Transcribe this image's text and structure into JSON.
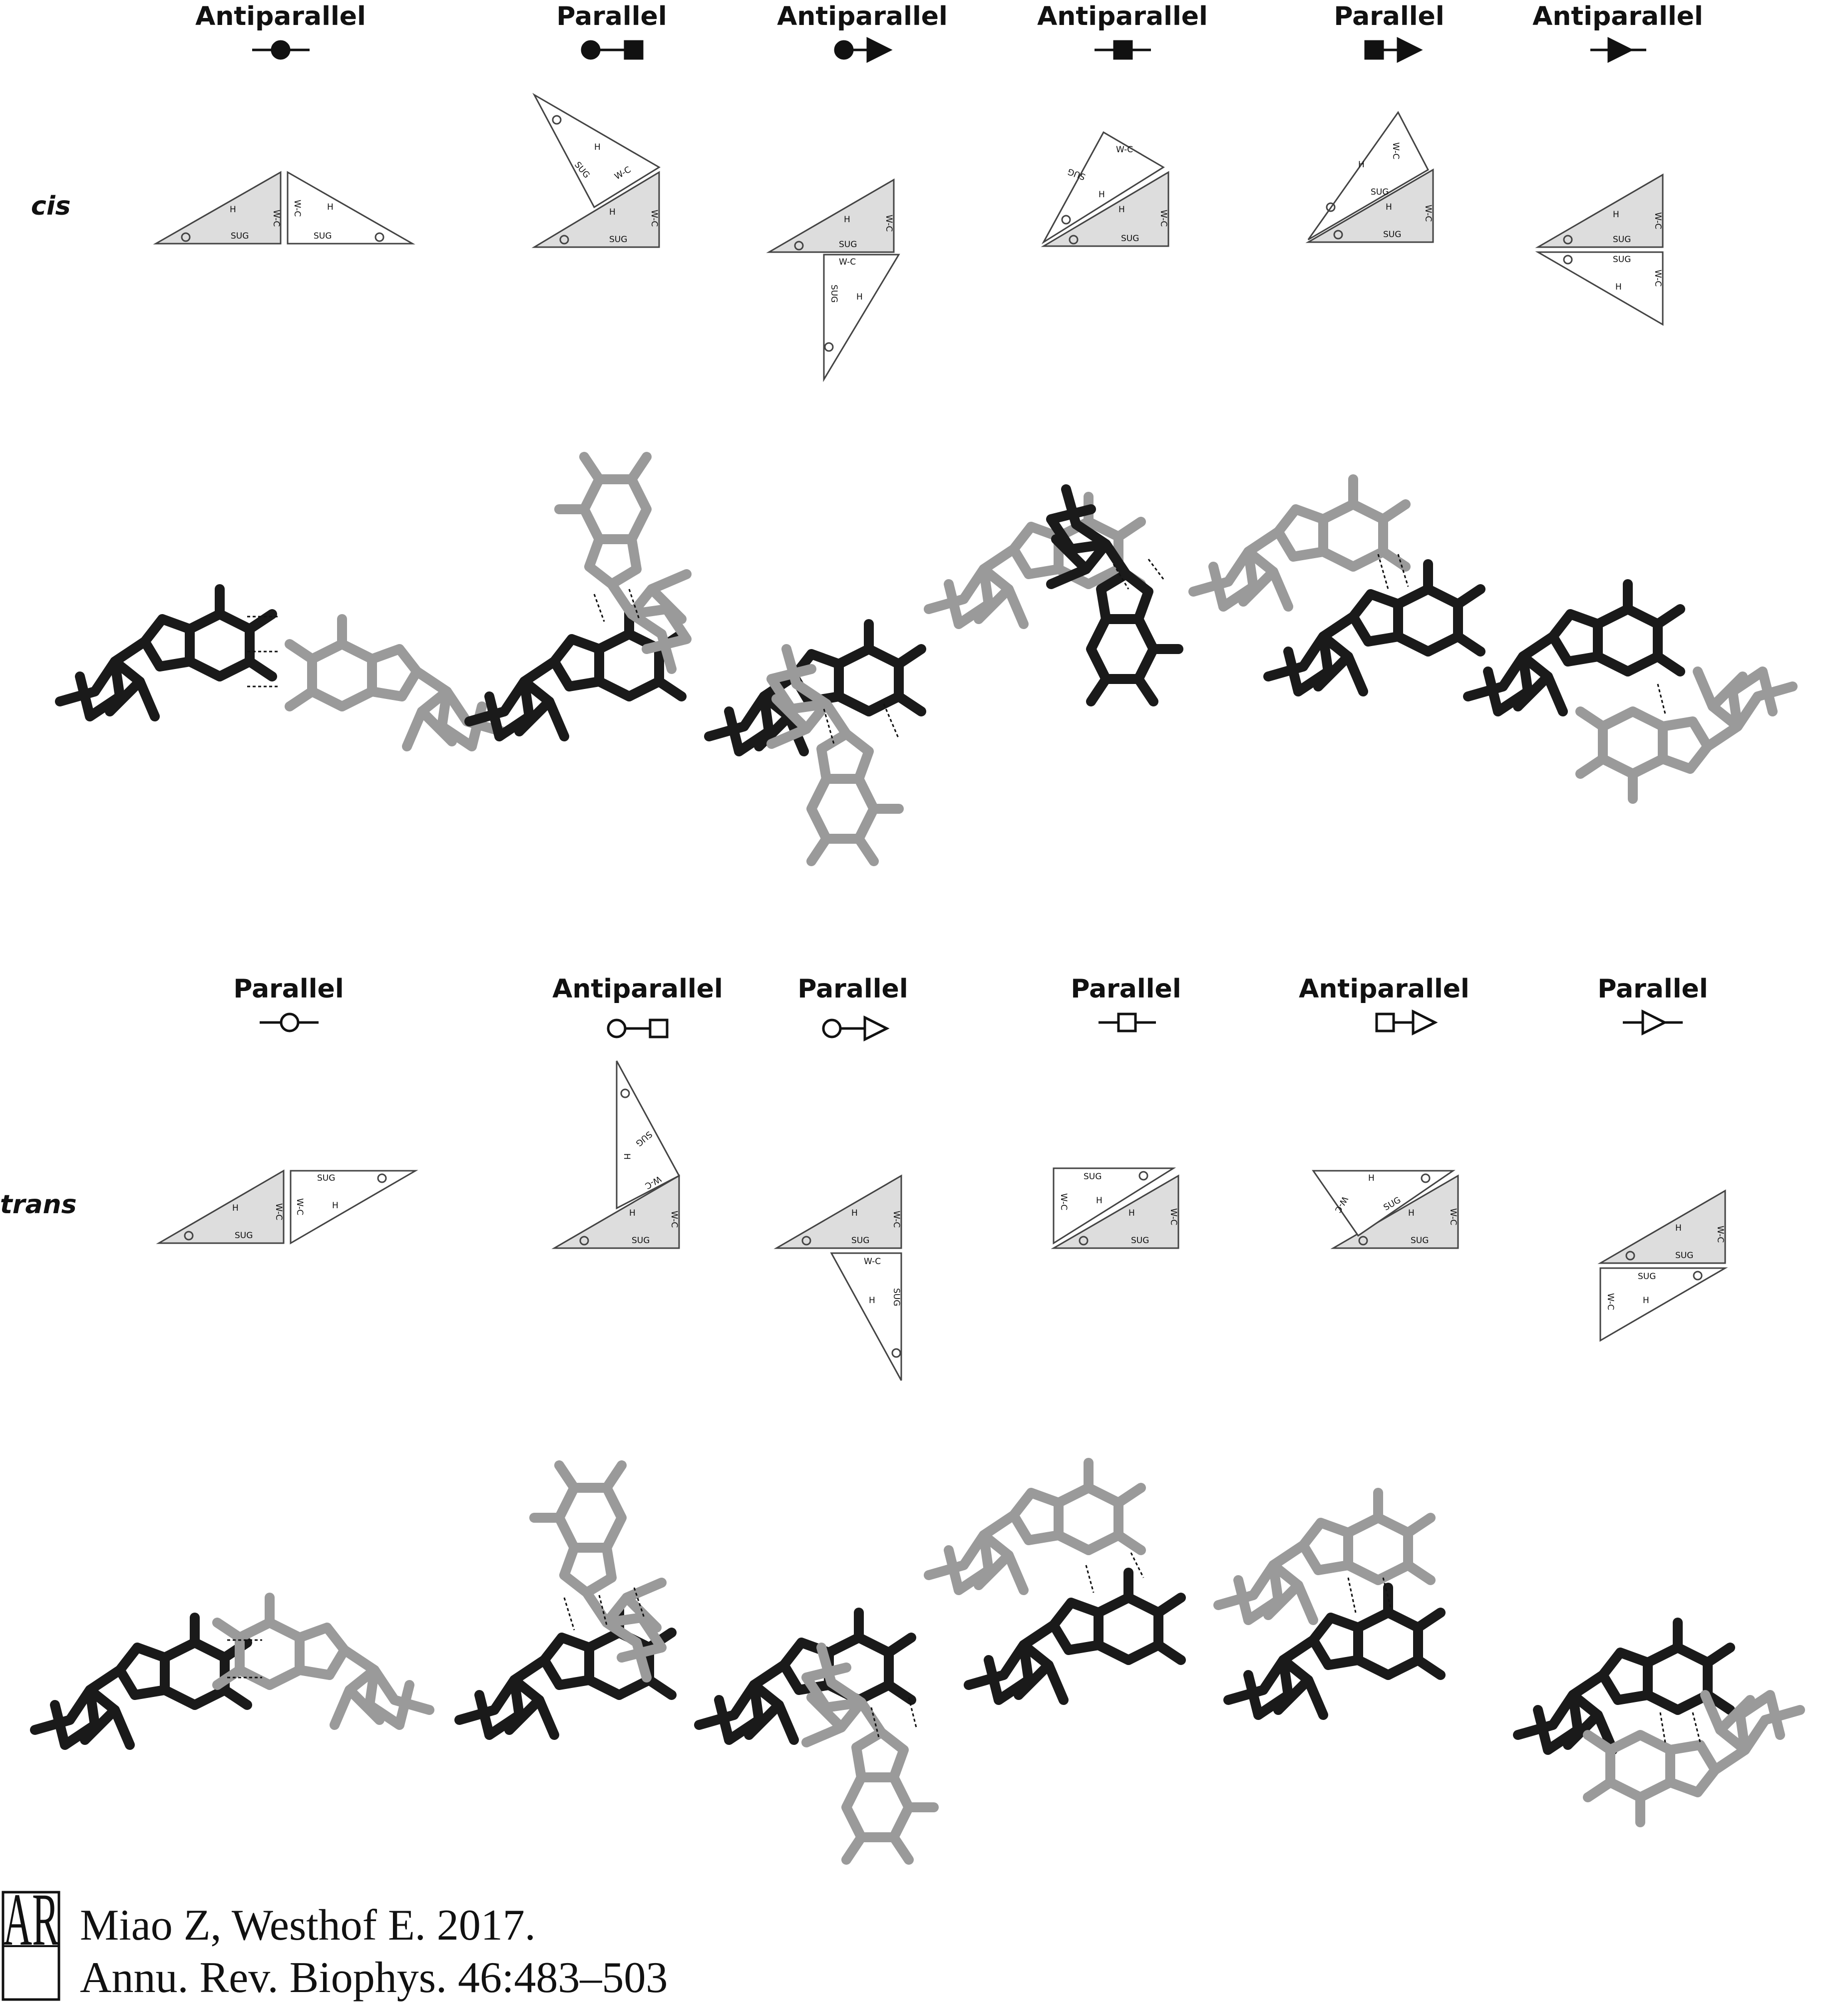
{
  "figure": {
    "rows": [
      {
        "label": "cis",
        "panels": [
          {
            "orientation": "Antiparallel",
            "symbol": "circle-filled"
          },
          {
            "orientation": "Parallel",
            "symbol": "circle-square-filled"
          },
          {
            "orientation": "Antiparallel",
            "symbol": "circle-triangle-filled"
          },
          {
            "orientation": "Antiparallel",
            "symbol": "square-filled"
          },
          {
            "orientation": "Parallel",
            "symbol": "square-triangle-filled"
          },
          {
            "orientation": "Antiparallel",
            "symbol": "triangle-filled"
          }
        ]
      },
      {
        "label": "trans",
        "panels": [
          {
            "orientation": "Parallel",
            "symbol": "circle-open"
          },
          {
            "orientation": "Antiparallel",
            "symbol": "circle-square-open"
          },
          {
            "orientation": "Parallel",
            "symbol": "circle-triangle-open"
          },
          {
            "orientation": "Parallel",
            "symbol": "square-open"
          },
          {
            "orientation": "Antiparallel",
            "symbol": "square-triangle-open"
          },
          {
            "orientation": "Parallel",
            "symbol": "triangle-open"
          }
        ]
      }
    ],
    "edge_labels": {
      "wc": "W-C",
      "hoogsteen": "H",
      "sugar": "SUG"
    },
    "colors": {
      "shaded_triangle": "#dddddd",
      "base_dark": "#1a1a1a",
      "base_light": "#9a9a9a"
    }
  },
  "credit": {
    "logo_letters": "AR",
    "line1": "Miao Z, Westhof E. 2017.",
    "line2": "Annu. Rev. Biophys. 46:483–503"
  }
}
